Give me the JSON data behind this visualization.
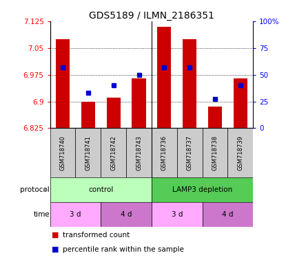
{
  "title": "GDS5189 / ILMN_2186351",
  "samples": [
    "GSM718740",
    "GSM718741",
    "GSM718742",
    "GSM718743",
    "GSM718736",
    "GSM718737",
    "GSM718738",
    "GSM718739"
  ],
  "bar_values": [
    7.075,
    6.9,
    6.91,
    6.965,
    7.11,
    7.075,
    6.885,
    6.965
  ],
  "percentile_values": [
    57,
    33,
    40,
    50,
    57,
    57,
    27,
    40
  ],
  "y_min": 6.825,
  "y_max": 7.125,
  "y_ticks": [
    6.825,
    6.9,
    6.975,
    7.05,
    7.125
  ],
  "y_tick_labels": [
    "6.825",
    "6.9",
    "6.975",
    "7.05",
    "7.125"
  ],
  "y2_ticks": [
    0,
    25,
    50,
    75,
    100
  ],
  "y2_tick_labels": [
    "0",
    "25",
    "50",
    "75",
    "100%"
  ],
  "bar_color": "#cc0000",
  "dot_color": "#0000cc",
  "bar_width": 0.55,
  "protocol_groups": [
    {
      "label": "control",
      "start": 0,
      "end": 4,
      "color": "#bbffbb"
    },
    {
      "label": "LAMP3 depletion",
      "start": 4,
      "end": 8,
      "color": "#55cc55"
    }
  ],
  "time_groups": [
    {
      "label": "3 d",
      "start": 0,
      "end": 2,
      "color": "#ffaaff"
    },
    {
      "label": "4 d",
      "start": 2,
      "end": 4,
      "color": "#cc77cc"
    },
    {
      "label": "3 d",
      "start": 4,
      "end": 6,
      "color": "#ffaaff"
    },
    {
      "label": "4 d",
      "start": 6,
      "end": 8,
      "color": "#cc77cc"
    }
  ],
  "legend_items": [
    {
      "label": "transformed count",
      "color": "#cc0000"
    },
    {
      "label": "percentile rank within the sample",
      "color": "#0000cc"
    }
  ],
  "bg_color": "#ffffff",
  "tick_fontsize": 7.5,
  "title_fontsize": 10,
  "sample_fontsize": 6.0,
  "row_fontsize": 7.5
}
